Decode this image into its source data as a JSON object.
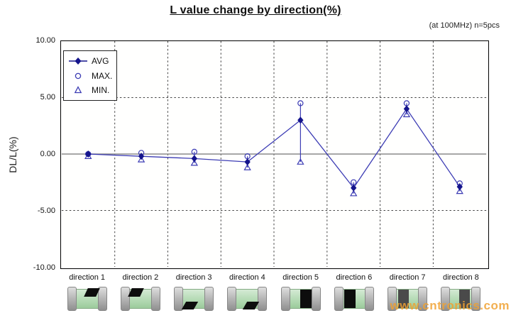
{
  "title": "L value change by direction(%)",
  "annotation": "(at 100MHz)  n=5pcs",
  "watermark": "www.cntronics.com",
  "colors": {
    "series_line": "#3c3cb4",
    "avg_marker_fill": "#14148c",
    "zero_line": "#8a8a8a",
    "gridline": "#444444",
    "watermark": "#f0a232",
    "chip_body_green": "#b4dab4",
    "chip_terminal_gray": "#b9b9b9",
    "chip_mark_black": "#0d0d0d",
    "chip_mark_gray": "#4a4a4a"
  },
  "chart_data": {
    "type": "line",
    "title": "L value change by direction(%)",
    "xlabel": "",
    "ylabel": "DL/L(%)",
    "ylim": [
      -10,
      10
    ],
    "ytick_labels": [
      "10.00",
      "5.00",
      "0.00",
      "-5.00",
      "-10.00"
    ],
    "ytick_values": [
      10,
      5,
      0,
      -5,
      -10
    ],
    "grid": true,
    "legend_position": "top-left-inside",
    "high_low_lines": true,
    "categories": [
      "direction 1",
      "direction 2",
      "direction 3",
      "direction 4",
      "direction 5",
      "direction 6",
      "direction 7",
      "direction 8"
    ],
    "series": [
      {
        "name": "AVG",
        "marker": "diamond",
        "style": "line-with-markers",
        "values": [
          0.0,
          -0.2,
          -0.4,
          -0.7,
          3.0,
          -3.0,
          4.0,
          -2.9
        ]
      },
      {
        "name": "MAX.",
        "marker": "circle",
        "style": "markers-only",
        "values": [
          0.0,
          0.1,
          0.2,
          -0.2,
          4.5,
          -2.5,
          4.5,
          -2.6
        ]
      },
      {
        "name": "MIN.",
        "marker": "triangle",
        "style": "markers-only",
        "values": [
          -0.2,
          -0.5,
          -0.8,
          -1.2,
          -0.7,
          -3.5,
          3.5,
          -3.3
        ]
      }
    ]
  },
  "chips": [
    {
      "name": "chip-direction-1",
      "mark": "top-right",
      "mark_color": "#0d0d0d"
    },
    {
      "name": "chip-direction-2",
      "mark": "top-left",
      "mark_color": "#0d0d0d"
    },
    {
      "name": "chip-direction-3",
      "mark": "bottom-left",
      "mark_color": "#0d0d0d"
    },
    {
      "name": "chip-direction-4",
      "mark": "bottom-right",
      "mark_color": "#0d0d0d"
    },
    {
      "name": "chip-direction-5",
      "mark": "right-face",
      "mark_color": "#0d0d0d"
    },
    {
      "name": "chip-direction-6",
      "mark": "left-face",
      "mark_color": "#0d0d0d"
    },
    {
      "name": "chip-direction-7",
      "mark": "center-left",
      "mark_color": "#4a4a4a"
    },
    {
      "name": "chip-direction-8",
      "mark": "center-right",
      "mark_color": "#4a4a4a"
    }
  ]
}
